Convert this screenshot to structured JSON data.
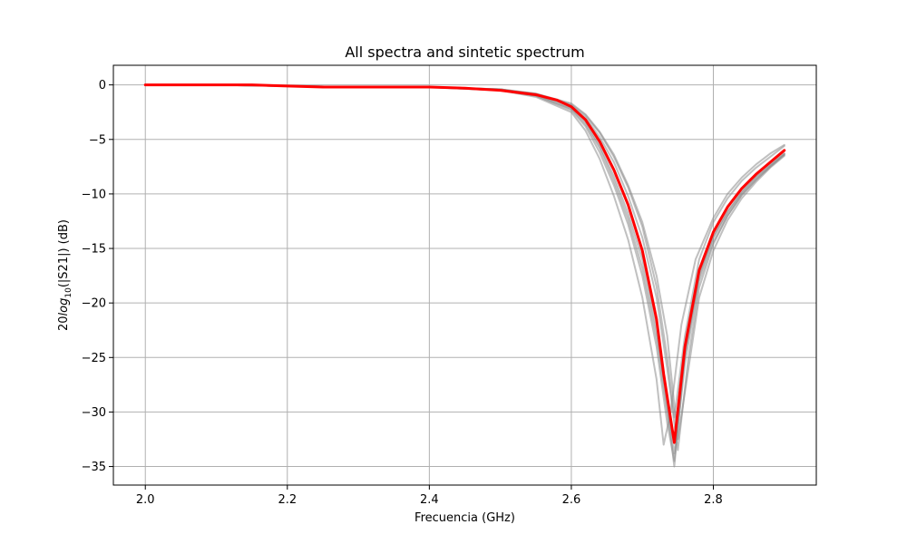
{
  "chart_data": {
    "type": "line",
    "title": "All spectra and sintetic spectrum",
    "xlabel": "Frecuencia (GHz)",
    "ylabel": {
      "pre": "20",
      "log": "log",
      "sub": "10",
      "post": "(|S21|) (dB)"
    },
    "xlim": [
      1.955,
      2.945
    ],
    "ylim": [
      -36.7,
      1.8
    ],
    "xticks": [
      2.0,
      2.2,
      2.4,
      2.6,
      2.8
    ],
    "xtick_labels": [
      "2.0",
      "2.2",
      "2.4",
      "2.6",
      "2.8"
    ],
    "yticks": [
      0,
      -5,
      -10,
      -15,
      -20,
      -25,
      -30,
      -35
    ],
    "ytick_labels": [
      "0",
      "−5",
      "−10",
      "−15",
      "−20",
      "−25",
      "−30",
      "−35"
    ],
    "grid": true,
    "legend": "none",
    "colors": {
      "spectra": "#8c8c8c",
      "synthetic": "#ff0000",
      "grid": "#b0b0b0"
    },
    "series": [
      {
        "role": "synthetic",
        "x": [
          2.0,
          2.05,
          2.1,
          2.15,
          2.2,
          2.25,
          2.3,
          2.35,
          2.4,
          2.45,
          2.5,
          2.55,
          2.58,
          2.6,
          2.62,
          2.64,
          2.66,
          2.68,
          2.7,
          2.72,
          2.73,
          2.745,
          2.76,
          2.78,
          2.8,
          2.82,
          2.84,
          2.86,
          2.88,
          2.9
        ],
        "y": [
          0.0,
          0.0,
          0.0,
          0.0,
          -0.1,
          -0.2,
          -0.2,
          -0.2,
          -0.2,
          -0.3,
          -0.5,
          -0.9,
          -1.4,
          -2.0,
          -3.2,
          -5.2,
          -7.8,
          -11.0,
          -15.2,
          -21.5,
          -26.5,
          -32.8,
          -24.0,
          -17.0,
          -13.5,
          -11.2,
          -9.5,
          -8.2,
          -7.1,
          -6.0
        ]
      },
      {
        "role": "measured",
        "x": [
          2.0,
          2.1,
          2.2,
          2.3,
          2.4,
          2.5,
          2.55,
          2.6,
          2.62,
          2.64,
          2.66,
          2.68,
          2.7,
          2.72,
          2.735,
          2.745,
          2.76,
          2.78,
          2.8,
          2.82,
          2.84,
          2.86,
          2.88,
          2.9
        ],
        "y": [
          0.0,
          0.0,
          -0.1,
          -0.2,
          -0.2,
          -0.4,
          -0.8,
          -1.8,
          -2.8,
          -4.4,
          -6.6,
          -9.4,
          -13.0,
          -18.5,
          -25.0,
          -30.5,
          -23.0,
          -16.0,
          -12.6,
          -10.4,
          -8.8,
          -7.6,
          -6.6,
          -5.6
        ]
      },
      {
        "role": "measured",
        "x": [
          2.0,
          2.1,
          2.2,
          2.3,
          2.4,
          2.5,
          2.55,
          2.6,
          2.62,
          2.64,
          2.66,
          2.68,
          2.7,
          2.72,
          2.735,
          2.745,
          2.76,
          2.78,
          2.8,
          2.82,
          2.84,
          2.86,
          2.88,
          2.9
        ],
        "y": [
          0.0,
          0.0,
          -0.1,
          -0.2,
          -0.2,
          -0.5,
          -1.0,
          -2.3,
          -3.8,
          -6.2,
          -9.2,
          -12.8,
          -17.5,
          -24.0,
          -31.0,
          -34.5,
          -25.5,
          -18.0,
          -14.4,
          -12.0,
          -10.1,
          -8.7,
          -7.5,
          -6.4
        ]
      },
      {
        "role": "measured",
        "x": [
          2.0,
          2.1,
          2.2,
          2.3,
          2.4,
          2.5,
          2.55,
          2.6,
          2.62,
          2.64,
          2.66,
          2.68,
          2.7,
          2.72,
          2.735,
          2.745,
          2.76,
          2.78,
          2.8,
          2.82,
          2.84,
          2.86,
          2.88,
          2.9
        ],
        "y": [
          0.0,
          0.0,
          -0.1,
          -0.2,
          -0.2,
          -0.4,
          -0.9,
          -2.1,
          -3.4,
          -5.6,
          -8.4,
          -11.8,
          -16.0,
          -22.5,
          -29.5,
          -35.0,
          -24.5,
          -17.4,
          -13.9,
          -11.6,
          -9.8,
          -8.4,
          -7.3,
          -6.3
        ]
      },
      {
        "role": "measured",
        "x": [
          2.0,
          2.1,
          2.2,
          2.3,
          2.4,
          2.5,
          2.55,
          2.6,
          2.62,
          2.64,
          2.66,
          2.68,
          2.7,
          2.72,
          2.735,
          2.75,
          2.765,
          2.78,
          2.8,
          2.82,
          2.84,
          2.86,
          2.88,
          2.9
        ],
        "y": [
          0.0,
          0.0,
          -0.1,
          -0.2,
          -0.2,
          -0.4,
          -0.8,
          -1.7,
          -2.7,
          -4.3,
          -6.4,
          -9.2,
          -12.6,
          -17.5,
          -23.0,
          -32.5,
          -26.0,
          -19.5,
          -15.2,
          -12.4,
          -10.4,
          -8.9,
          -7.6,
          -6.5
        ]
      },
      {
        "role": "measured",
        "x": [
          2.0,
          2.1,
          2.2,
          2.3,
          2.4,
          2.5,
          2.55,
          2.6,
          2.62,
          2.64,
          2.66,
          2.68,
          2.7,
          2.72,
          2.73,
          2.74,
          2.755,
          2.775,
          2.8,
          2.82,
          2.84,
          2.86,
          2.88,
          2.9
        ],
        "y": [
          0.0,
          0.0,
          -0.1,
          -0.2,
          -0.2,
          -0.5,
          -1.1,
          -2.5,
          -4.2,
          -6.8,
          -10.2,
          -14.2,
          -19.5,
          -27.0,
          -33.0,
          -30.0,
          -22.0,
          -16.0,
          -12.2,
          -10.0,
          -8.5,
          -7.3,
          -6.3,
          -5.5
        ]
      },
      {
        "role": "measured",
        "x": [
          2.0,
          2.1,
          2.2,
          2.3,
          2.4,
          2.5,
          2.55,
          2.6,
          2.62,
          2.64,
          2.66,
          2.68,
          2.7,
          2.72,
          2.735,
          2.75,
          2.765,
          2.78,
          2.8,
          2.82,
          2.84,
          2.86,
          2.88,
          2.9
        ],
        "y": [
          0.0,
          0.0,
          -0.1,
          -0.2,
          -0.2,
          -0.4,
          -0.9,
          -1.9,
          -3.0,
          -4.8,
          -7.1,
          -10.2,
          -14.0,
          -19.5,
          -26.0,
          -33.5,
          -25.0,
          -18.6,
          -14.6,
          -12.0,
          -10.1,
          -8.7,
          -7.5,
          -6.4
        ]
      },
      {
        "role": "measured",
        "x": [
          2.0,
          2.1,
          2.2,
          2.3,
          2.4,
          2.5,
          2.55,
          2.6,
          2.62,
          2.64,
          2.66,
          2.68,
          2.7,
          2.72,
          2.735,
          2.745,
          2.76,
          2.78,
          2.8,
          2.82,
          2.84,
          2.86,
          2.88,
          2.9
        ],
        "y": [
          0.0,
          0.0,
          -0.1,
          -0.2,
          -0.2,
          -0.5,
          -1.0,
          -2.2,
          -3.6,
          -5.8,
          -8.8,
          -12.3,
          -16.8,
          -23.2,
          -30.0,
          -33.8,
          -24.8,
          -17.6,
          -14.0,
          -11.7,
          -9.9,
          -8.5,
          -7.4,
          -6.3
        ]
      }
    ]
  }
}
